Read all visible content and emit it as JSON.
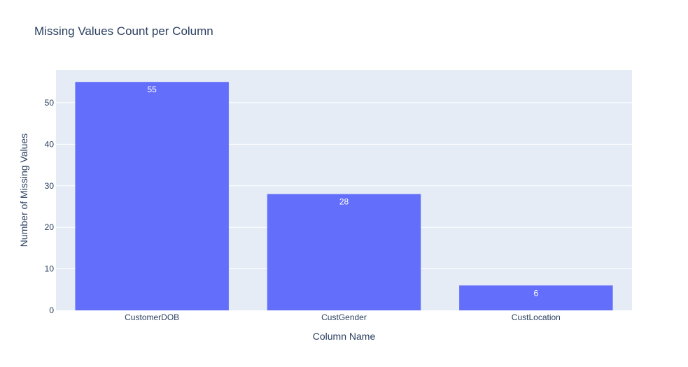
{
  "chart_data": {
    "type": "bar",
    "title": "Missing Values Count per Column",
    "xlabel": "Column Name",
    "ylabel": "Number of Missing Values",
    "categories": [
      "CustomerDOB",
      "CustGender",
      "CustLocation"
    ],
    "values": [
      55,
      28,
      6
    ],
    "ylim": [
      0,
      57.9
    ],
    "yticks": [
      0,
      10,
      20,
      30,
      40,
      50
    ],
    "grid": true,
    "bar_color": "#636efa",
    "plot_bg": "#e5ecf6",
    "text_color": "#2a3f5f"
  }
}
